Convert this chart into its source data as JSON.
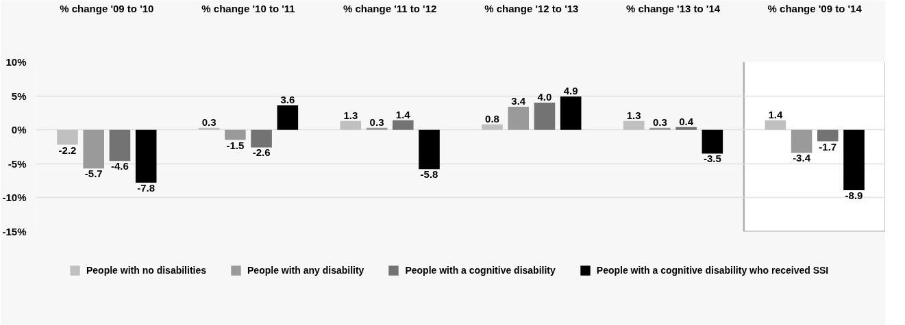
{
  "chart_data": {
    "type": "bar",
    "categories": [
      "% change '09 to '10",
      "% change '10 to '11",
      "% change '11 to '12",
      "% change '12 to '13",
      "% change '13 to '14",
      "% change '09 to '14"
    ],
    "series": [
      {
        "name": "People with no disabilities",
        "color": "#c0c0c0",
        "values": [
          -2.2,
          0.3,
          1.3,
          0.8,
          1.3,
          1.4
        ],
        "value_labels": [
          "-2.2",
          "0.3",
          "1.3",
          "0.8",
          "1.3",
          "1.4"
        ]
      },
      {
        "name": "People with any disability",
        "color": "#9a9a9a",
        "values": [
          -5.7,
          -1.5,
          0.3,
          3.4,
          0.3,
          -3.4
        ],
        "value_labels": [
          "-5.7",
          "-1.5",
          "0.3",
          "3.4",
          "0.3",
          "-3.4"
        ]
      },
      {
        "name": "People with a cognitive disability",
        "color": "#737373",
        "values": [
          -4.6,
          -2.6,
          1.4,
          4.0,
          0.4,
          -1.7
        ],
        "value_labels": [
          "-4.6",
          "-2.6",
          "1.4",
          "4.0",
          "0.4",
          "-1.7"
        ]
      },
      {
        "name": "People with a cognitive disability who received SSI",
        "color": "#000000",
        "values": [
          -7.8,
          3.6,
          -5.8,
          4.9,
          -3.5,
          -8.9
        ],
        "value_labels": [
          "-7.8",
          "3.6",
          "-5.8",
          "4.9",
          "-3.5",
          "-8.9"
        ]
      }
    ],
    "ylim": [
      -15,
      10
    ],
    "yticks": [
      {
        "value": 10,
        "label": "10%"
      },
      {
        "value": 5,
        "label": "5%"
      },
      {
        "value": 0,
        "label": "0%"
      },
      {
        "value": -5,
        "label": "-5%"
      },
      {
        "value": -10,
        "label": "-10%"
      },
      {
        "value": -15,
        "label": "-15%"
      }
    ],
    "grid": "y",
    "legend": "bottom",
    "bands": [
      {
        "axis": "x",
        "from": "% change '09 to '14",
        "to": "% change '09 to '14",
        "color": "#ffffff"
      }
    ]
  }
}
